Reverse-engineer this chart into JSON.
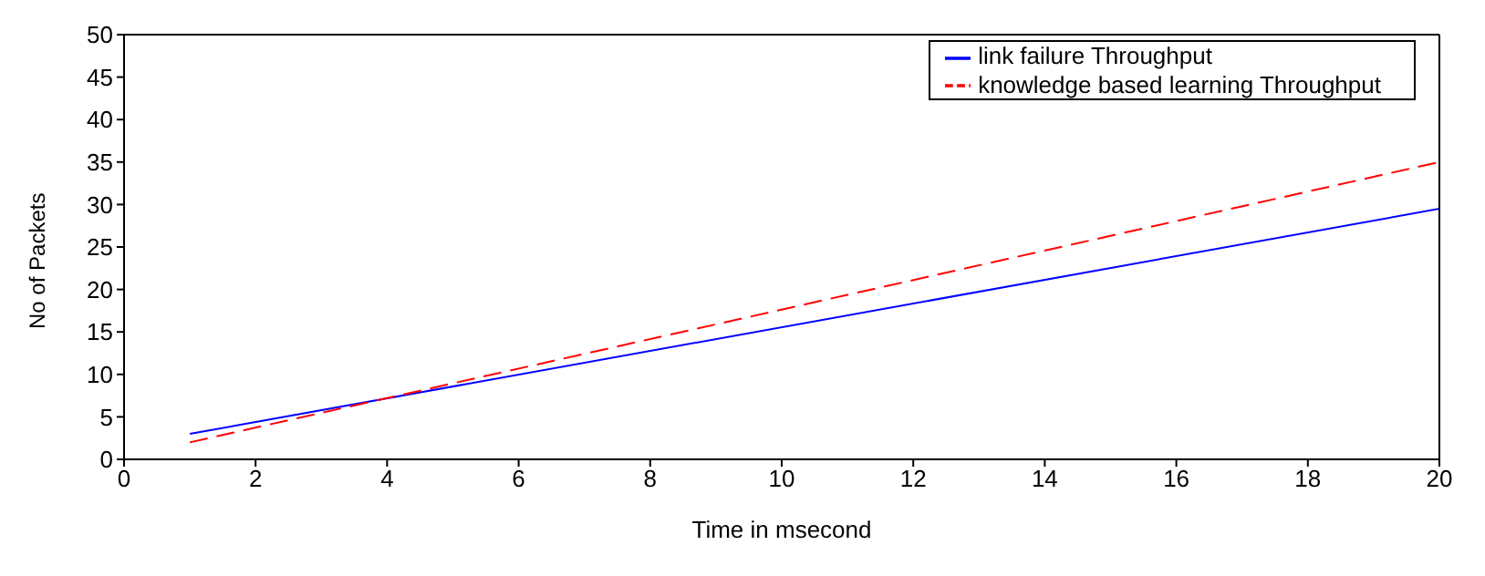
{
  "chart_data": {
    "type": "line",
    "xlabel": "Time in msecond",
    "ylabel": "No of Packets",
    "x": [
      1,
      20
    ],
    "series": [
      {
        "name": "link failure Throughput",
        "color": "#0000ff",
        "values": [
          3,
          29.5
        ],
        "line_style": "solid"
      },
      {
        "name": "knowledge based learning Throughput",
        "color": "#ff0000",
        "values": [
          2,
          35
        ],
        "line_style": "dashed"
      }
    ],
    "xlim": [
      0,
      20
    ],
    "xticks": [
      0,
      2,
      4,
      6,
      8,
      10,
      12,
      14,
      16,
      18,
      20
    ],
    "ylim": [
      0,
      50
    ],
    "yticks": [
      0,
      5,
      10,
      15,
      20,
      25,
      30,
      35,
      40,
      45,
      50
    ],
    "grid": false,
    "legend": "top right",
    "marker": "none"
  }
}
